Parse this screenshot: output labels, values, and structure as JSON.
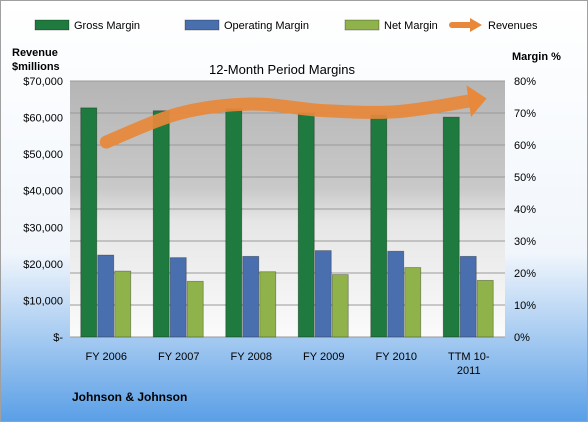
{
  "chart_data": {
    "type": "bar",
    "title": "12-Month Period Margins",
    "categories": [
      "FY 2006",
      "FY 2007",
      "FY 2008",
      "FY 2009",
      "FY 2010",
      "TTM 10-2011"
    ],
    "series": [
      {
        "name": "Gross Margin",
        "color": "#1e7a3e",
        "values": [
          71.6,
          70.7,
          71.3,
          70.0,
          69.4,
          68.7
        ]
      },
      {
        "name": "Operating Margin",
        "color": "#4a6fae",
        "values": [
          25.6,
          24.8,
          25.2,
          27.0,
          26.8,
          25.2
        ]
      },
      {
        "name": "Net Margin",
        "color": "#8fb24a",
        "values": [
          20.6,
          17.4,
          20.4,
          19.5,
          21.7,
          17.7
        ]
      },
      {
        "name": "Revenues",
        "type": "trend-arrow",
        "color": "#e8883a",
        "values": [
          53300,
          61100,
          63700,
          61900,
          61600,
          64500
        ]
      }
    ],
    "y_left": {
      "label_line1": "Revenue",
      "label_line2": "$millions",
      "min": 0,
      "max": 70000,
      "ticks": [
        "$-",
        "$10,000",
        "$20,000",
        "$30,000",
        "$40,000",
        "$50,000",
        "$60,000",
        "$70,000"
      ]
    },
    "y_right": {
      "label": "Margin %",
      "min": 0,
      "max": 80,
      "ticks": [
        "0%",
        "10%",
        "20%",
        "30%",
        "40%",
        "50%",
        "60%",
        "70%",
        "80%"
      ]
    },
    "legend_position": "top",
    "grid": true
  },
  "footer": {
    "company": "Johnson & Johnson"
  }
}
